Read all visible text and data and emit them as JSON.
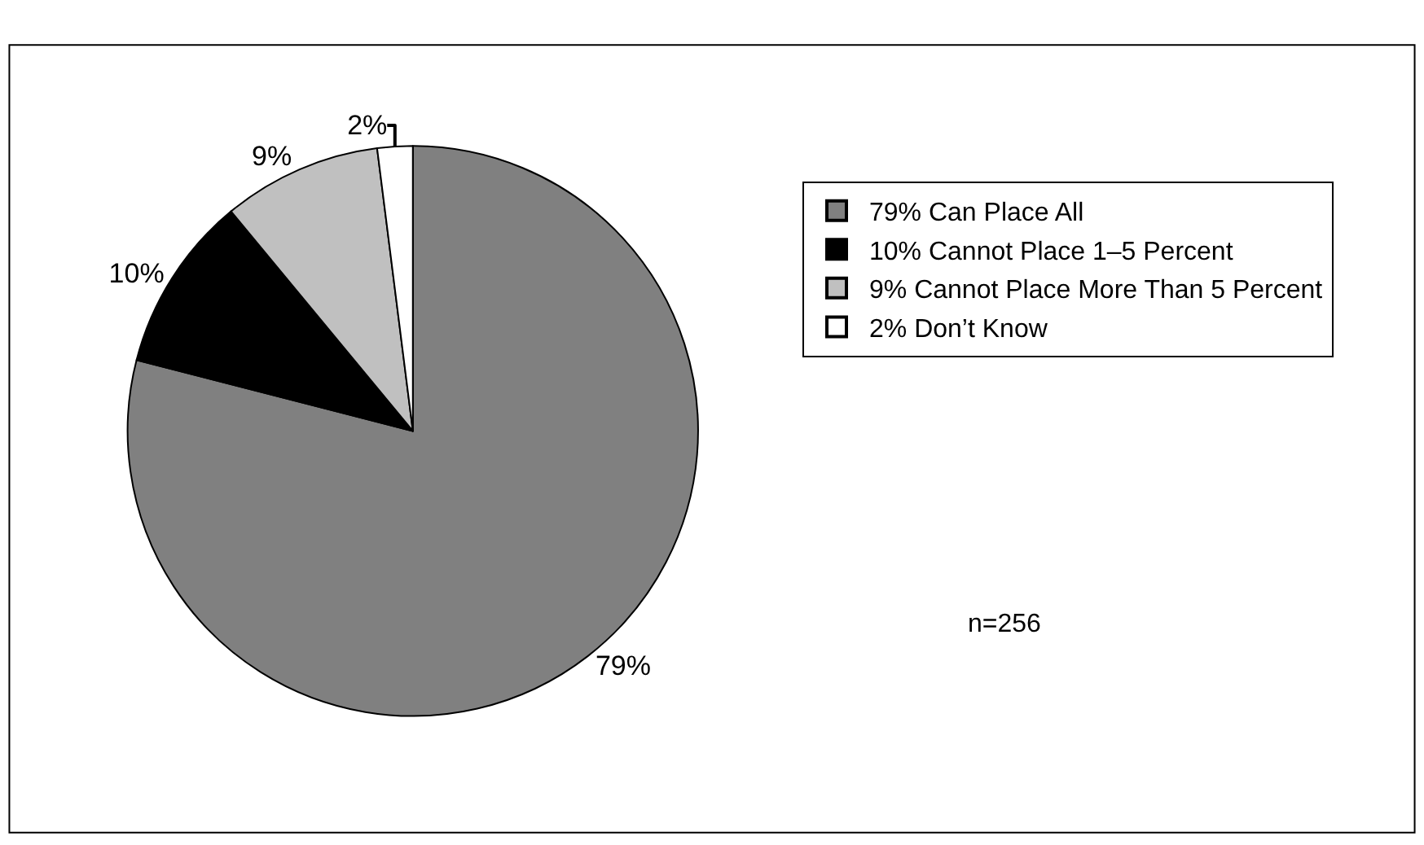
{
  "chart_data": {
    "type": "pie",
    "categories": [
      "79% Can Place All",
      "10% Cannot Place 1–5 Percent",
      "9% Cannot Place More Than 5 Percent",
      "2% Don’t Know"
    ],
    "values": [
      79,
      10,
      9,
      2
    ],
    "colors": [
      "#808080",
      "#000000",
      "#c0c0c0",
      "#ffffff"
    ],
    "value_labels": [
      "79%",
      "10%",
      "9%",
      "2%"
    ],
    "legend": "right",
    "annotations": [
      "n=256"
    ]
  }
}
